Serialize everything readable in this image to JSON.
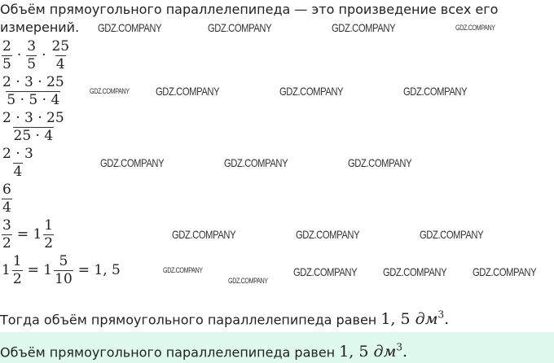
{
  "intro": {
    "line1": "Объём прямоугольного параллелепипеда — это произведение всех его",
    "line2": "измерений."
  },
  "math": {
    "r1": {
      "n1": "2",
      "d1": "5",
      "n2": "3",
      "d2": "5",
      "n3": "25",
      "d3": "4",
      "dot": "·"
    },
    "r2": {
      "num": "2 · 3 · 25",
      "den": "5 · 5 · 4"
    },
    "r3": {
      "num": "2 · 3 · 25",
      "den": "25 · 4"
    },
    "r4": {
      "num": "2 · 3",
      "den": "4"
    },
    "r5": {
      "num": "6",
      "den": "4"
    },
    "r6": {
      "num": "3",
      "den": "2",
      "eq": "= 1",
      "fn": "1",
      "fd": "2"
    },
    "r7": {
      "whole": "1",
      "fn": "1",
      "fd": "2",
      "eq1": "= 1",
      "fn2": "5",
      "fd2": "10",
      "eq2": "= 1, 5"
    }
  },
  "conclusion": {
    "text": "Тогда объём прямоугольного параллелепипеда равен",
    "value": "1, 5",
    "unit": "дм",
    "exp": "3",
    "end": "."
  },
  "answer": {
    "text": "Объём прямоугольного параллелепипеда равен",
    "value": "1, 5",
    "unit": "дм",
    "exp": "3",
    "end": ".",
    "bg": "#dff9ec"
  },
  "watermark": "GDZ.COMPANY"
}
